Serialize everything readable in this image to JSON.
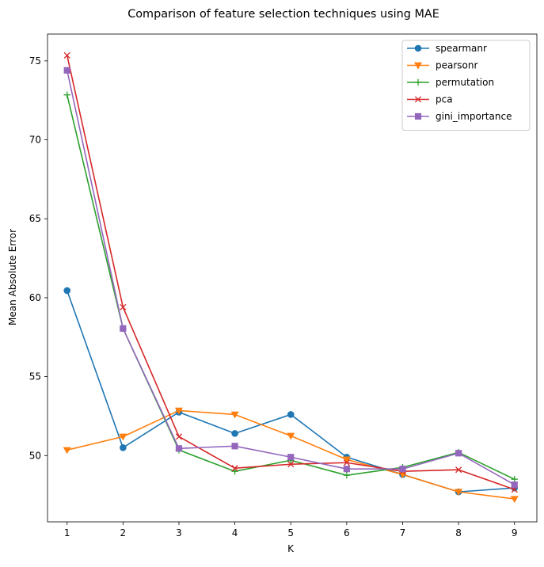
{
  "chart_data": {
    "type": "line",
    "title": "Comparison of feature selection techniques using MAE",
    "xlabel": "K",
    "ylabel": "Mean Absolute Error",
    "x": [
      1,
      2,
      3,
      4,
      5,
      6,
      7,
      8,
      9
    ],
    "xlim": [
      0.65,
      9.4
    ],
    "ylim": [
      45.8,
      76.7
    ],
    "x_ticks": [
      1,
      2,
      3,
      4,
      5,
      6,
      7,
      8,
      9
    ],
    "y_ticks": [
      50,
      55,
      60,
      65,
      70,
      75
    ],
    "grid": false,
    "legend_position": "top-right",
    "series": [
      {
        "name": "spearmanr",
        "color": "#1f77b4",
        "marker": "circle",
        "values": [
          60.45,
          50.5,
          52.75,
          51.4,
          52.6,
          49.9,
          48.8,
          47.7,
          47.95
        ]
      },
      {
        "name": "pearsonr",
        "color": "#ff7f0e",
        "marker": "triangle-down",
        "values": [
          50.35,
          51.2,
          52.85,
          52.6,
          51.25,
          49.75,
          48.8,
          47.7,
          47.25
        ]
      },
      {
        "name": "permutation",
        "color": "#2ca02c",
        "marker": "plus",
        "values": [
          72.85,
          58.05,
          50.35,
          49.0,
          49.7,
          48.75,
          49.25,
          50.2,
          48.5
        ]
      },
      {
        "name": "pca",
        "color": "#d62728",
        "marker": "x",
        "values": [
          75.35,
          59.4,
          51.2,
          49.2,
          49.45,
          49.55,
          49.0,
          49.1,
          47.85
        ]
      },
      {
        "name": "gini_importance",
        "color": "#9467bd",
        "marker": "square",
        "values": [
          74.4,
          58.05,
          50.45,
          50.6,
          49.9,
          49.15,
          49.15,
          50.15,
          48.15
        ]
      }
    ]
  }
}
